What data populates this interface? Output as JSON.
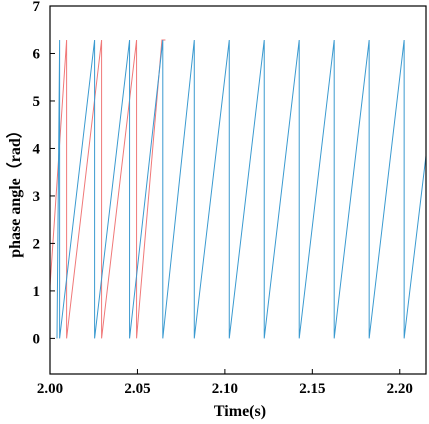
{
  "chart_data": {
    "type": "line",
    "xlabel": "Time(s)",
    "ylabel": "phase angle（rad）",
    "xlim": [
      2.0,
      2.215
    ],
    "ylim": [
      -0.75,
      7.0
    ],
    "xticks": [
      2.0,
      2.05,
      2.1,
      2.15,
      2.2
    ],
    "xtick_labels": [
      "2.00",
      "2.05",
      "2.10",
      "2.15",
      "2.20"
    ],
    "yticks": [
      0,
      1,
      2,
      3,
      4,
      5,
      6,
      7
    ],
    "ytick_labels": [
      "0",
      "1",
      "2",
      "3",
      "4",
      "5",
      "6",
      "7"
    ],
    "grid": false,
    "legend": false,
    "series": [
      {
        "color": "#f07878",
        "wrap": 6.2832,
        "segments": [
          {
            "x0": 2.0,
            "x1": 2.0095,
            "y0": 1.1
          },
          {
            "x0": 2.0095,
            "x1": 2.0295
          },
          {
            "x0": 2.0295,
            "x1": 2.0495
          },
          {
            "x0": 2.0495,
            "x1": 2.064,
            "y1": 6.2832
          },
          {
            "x0": 2.064,
            "x1": 2.066,
            "y0": 6.2832,
            "y1": 6.2832
          }
        ]
      },
      {
        "color": "#3a9ad0",
        "wrap": 6.2832,
        "segments": [
          {
            "x0": 2.004,
            "x1": 2.0055,
            "y0": 0,
            "y1": 6.2832
          },
          {
            "x0": 2.0055,
            "x1": 2.0255
          },
          {
            "x0": 2.0255,
            "x1": 2.0455
          },
          {
            "x0": 2.0455,
            "x1": 2.0645
          },
          {
            "x0": 2.0645,
            "x1": 2.0825
          },
          {
            "x0": 2.0825,
            "x1": 2.1025
          },
          {
            "x0": 2.1025,
            "x1": 2.1225
          },
          {
            "x0": 2.1225,
            "x1": 2.1425
          },
          {
            "x0": 2.1425,
            "x1": 2.1625
          },
          {
            "x0": 2.1625,
            "x1": 2.1825
          },
          {
            "x0": 2.1825,
            "x1": 2.2025
          },
          {
            "x0": 2.2025,
            "x1": 2.215,
            "y1": 3.85
          }
        ]
      }
    ]
  }
}
